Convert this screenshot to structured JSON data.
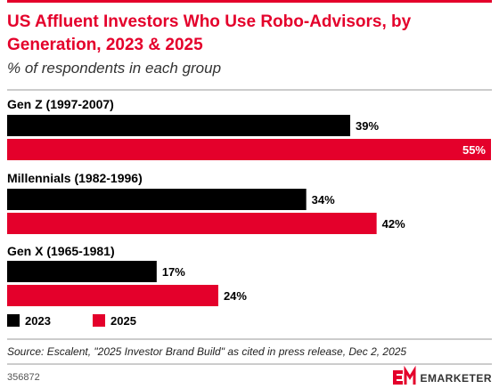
{
  "chart_data": {
    "type": "bar",
    "orientation": "horizontal",
    "title_lines": [
      "US Affluent Investors Who Use Robo-Advisors, by",
      "Generation, 2023 & 2025"
    ],
    "subtitle": "% of respondents in each group",
    "categories": [
      "Gen Z (1997-2007)",
      "Millennials (1982-1996)",
      "Gen X (1965-1981)"
    ],
    "series": [
      {
        "name": "2023",
        "values": [
          39,
          34,
          17
        ],
        "labels": [
          "39%",
          "34%",
          "17%"
        ],
        "color": "#000000"
      },
      {
        "name": "2025",
        "values": [
          55,
          42,
          24
        ],
        "labels": [
          "55%",
          "42%",
          "24%"
        ],
        "color": "#e4002b"
      }
    ],
    "xlim": [
      0,
      55
    ],
    "legend_position": "bottom-left",
    "grid": false
  },
  "source": "Source: Escalent, \"2025 Investor Brand Build\" as cited in press release, Dec 2, 2025",
  "chart_id": "356872",
  "brand": "EMARKETER",
  "colors": {
    "accent": "#e4002b",
    "text": "#000000",
    "muted": "#555555",
    "rule": "#999999"
  }
}
